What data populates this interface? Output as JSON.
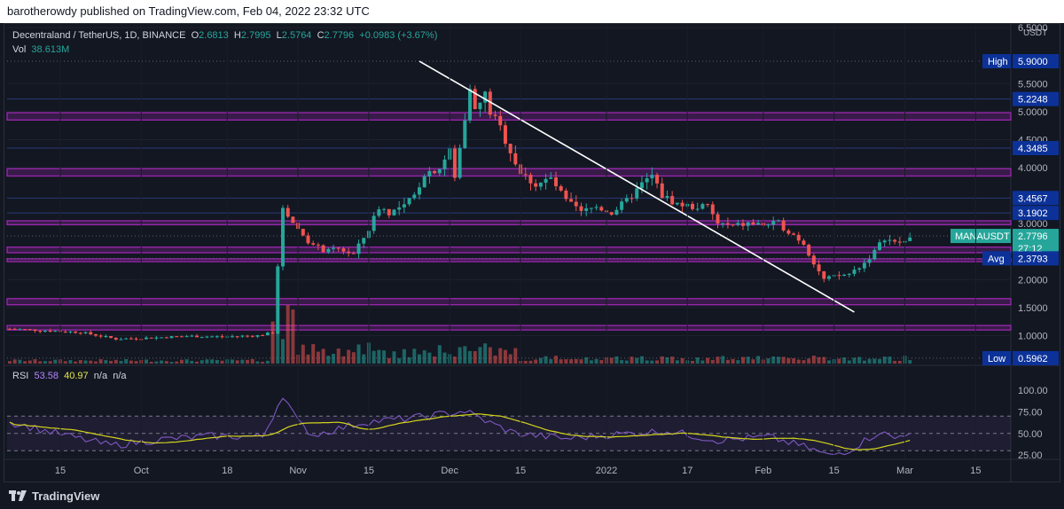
{
  "header": {
    "published_text": "barotherowdy published on TradingView.com, Feb 04, 2022 23:32 UTC"
  },
  "legend": {
    "symbol": "Decentraland / TetherUS, 1D, BINANCE",
    "open_label": "O",
    "open": "2.6813",
    "high_label": "H",
    "high": "2.7995",
    "low_label": "L",
    "low": "2.5764",
    "close_label": "C",
    "close": "2.7796",
    "change": "+0.0983 (+3.67%)",
    "vol_label": "Vol",
    "vol": "38.613M"
  },
  "rsi_legend": {
    "label": "RSI",
    "value": "53.58",
    "ma": "40.97",
    "na1": "n/a",
    "na2": "n/a"
  },
  "footer": {
    "brand": "TradingView"
  },
  "colors": {
    "up": "#26a69a",
    "down": "#ef5350",
    "zone": "#9c27b0",
    "rsi": "#7e57c2",
    "rsi_ma": "#d4d41c",
    "label_blue": "#0c3299",
    "price_tag": "#26a69a"
  },
  "chart_data": {
    "type": "candlestick",
    "price_axis": {
      "unit": "USDT",
      "ticks": [
        "6.5000",
        "5.5000",
        "5.0000",
        "4.5000",
        "4.0000",
        "3.0000",
        "2.0000",
        "1.5000",
        "1.0000"
      ],
      "range": [
        0.5,
        6.55
      ]
    },
    "x_axis": {
      "ticks": [
        "15",
        "Oct",
        "18",
        "Nov",
        "15",
        "Dec",
        "15",
        "2022",
        "17",
        "Feb",
        "15",
        "Mar",
        "15"
      ]
    },
    "price_labels": [
      {
        "tag": "High",
        "value": "5.9000"
      },
      {
        "tag": "",
        "value": "5.2248"
      },
      {
        "tag": "",
        "value": "4.3485"
      },
      {
        "tag": "",
        "value": "3.4567"
      },
      {
        "tag": "",
        "value": "3.1902"
      },
      {
        "tag": "MANAUSDT",
        "value": "2.7796",
        "sub": "27:12"
      },
      {
        "tag": "Avg",
        "value": "2.3793"
      },
      {
        "tag": "Low",
        "value": "0.5962"
      }
    ],
    "zones": [
      [
        4.85,
        4.98
      ],
      [
        3.85,
        3.98
      ],
      [
        2.98,
        3.05
      ],
      [
        2.48,
        2.58
      ],
      [
        2.32,
        2.37
      ],
      [
        1.55,
        1.66
      ],
      [
        1.1,
        1.18
      ]
    ],
    "trendline": {
      "from": {
        "date": "Nov 25",
        "price": 5.9
      },
      "to": {
        "date": "Feb 19",
        "price": 1.42
      }
    },
    "rsi": {
      "ticks": [
        "100.00",
        "75.00",
        "50.00",
        "25.00"
      ],
      "upper": 70,
      "mid": 50,
      "lower": 30,
      "range": [
        20,
        100
      ]
    },
    "volume_axis": {
      "unit": "USDT"
    }
  }
}
